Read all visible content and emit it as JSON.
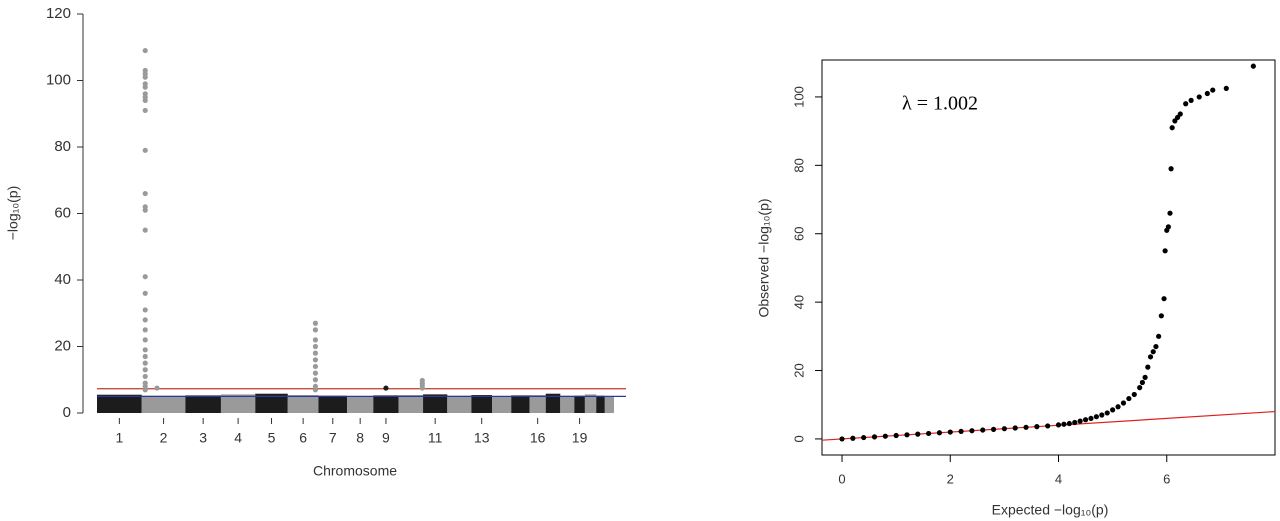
{
  "chart_data": [
    {
      "type": "manhattan",
      "x_label": "Chromosome",
      "y_label": "−log₁₀(p)",
      "ylim": [
        0,
        120
      ],
      "yticks": [
        0,
        20,
        40,
        60,
        80,
        100,
        120
      ],
      "categories": [
        "1",
        "2",
        "3",
        "4",
        "5",
        "6",
        "7",
        "8",
        "9",
        null,
        "11",
        null,
        "13",
        null,
        null,
        "16",
        null,
        null,
        "19",
        null,
        null,
        null
      ],
      "lengths": [
        249,
        243,
        198,
        191,
        181,
        171,
        159,
        146,
        141,
        136,
        135,
        134,
        115,
        107,
        102,
        90,
        81,
        78,
        59,
        63,
        48,
        51
      ],
      "bands": {
        "values": [
          5.5,
          5.2,
          5.3,
          5.6,
          5.8,
          5.4,
          5.2,
          5,
          5.3,
          5.4,
          5.6,
          5.2,
          5.4,
          5,
          5.3,
          5.4,
          5.8,
          5.2,
          5.2,
          5.6,
          5.2,
          5
        ]
      },
      "band_colors": [
        "#1c1c1c",
        "#9a9a9a"
      ],
      "hlines": [
        {
          "value": 7.3,
          "color": "#c0392b"
        },
        {
          "value": 5,
          "color": "#2b3a9a"
        }
      ],
      "points": {
        "x": [
          2.08,
          2.08,
          2.08,
          2.08,
          2.08,
          2.08,
          2.08,
          2.08,
          2.08,
          2.08,
          2.08,
          2.08,
          2.08,
          2.08,
          2.08,
          2.08,
          2.08,
          2.08,
          2.08,
          2.08,
          2.08,
          2.08,
          2.08,
          2.08,
          2.08,
          2.08,
          2.08,
          2.08,
          2.08,
          2.35,
          6.9,
          6.9,
          6.9,
          6.9,
          6.9,
          6.9,
          6.9,
          6.9,
          6.9,
          6.9,
          6.9,
          9.5,
          10.97,
          10.97,
          10.97,
          10.97
        ],
        "values": [
          109,
          103,
          102,
          101,
          99,
          98,
          96,
          95,
          94,
          91,
          79,
          66,
          62,
          61,
          55,
          41,
          36,
          31,
          28,
          25,
          22,
          19,
          17,
          15,
          13,
          11,
          9,
          8,
          7,
          7.5,
          27,
          25,
          22,
          20,
          18,
          16,
          14,
          12,
          10,
          8,
          7,
          7.5,
          9.8,
          9,
          8.3,
          7.5
        ]
      }
    },
    {
      "type": "scatter",
      "x_label": "Expected −log₁₀(p)",
      "y_label": "Observed −log₁₀(p)",
      "annotation": "λ = 1.002",
      "xlim": [
        -0.37,
        8.0
      ],
      "xticks": [
        0,
        2,
        4,
        6
      ],
      "ylim": [
        -4.7,
        110.8
      ],
      "yticks": [
        0,
        20,
        40,
        60,
        80,
        100
      ],
      "color": "#000000",
      "reference_line": {
        "slope": 1,
        "color": "#e02020"
      },
      "x": [
        0,
        0.2,
        0.4,
        0.6,
        0.8,
        1,
        1.2,
        1.4,
        1.6,
        1.8,
        2,
        2.2,
        2.4,
        2.6,
        2.8,
        3,
        3.2,
        3.4,
        3.6,
        3.8,
        4,
        4.1,
        4.2,
        4.3,
        4.4,
        4.5,
        4.6,
        4.7,
        4.8,
        4.9,
        5,
        5.1,
        5.2,
        5.3,
        5.4,
        5.5,
        5.55,
        5.6,
        5.65,
        5.7,
        5.75,
        5.8,
        5.85,
        5.9,
        5.95,
        5.97,
        6,
        6.03,
        6.06,
        6.08,
        6.1,
        6.15,
        6.2,
        6.25,
        6.35,
        6.45,
        6.6,
        6.75,
        6.85,
        7.1,
        7.6
      ],
      "values": [
        0,
        0.2,
        0.4,
        0.6,
        0.8,
        1,
        1.2,
        1.4,
        1.6,
        1.8,
        2,
        2.2,
        2.4,
        2.6,
        2.8,
        3,
        3.2,
        3.4,
        3.6,
        3.8,
        4.1,
        4.3,
        4.5,
        4.8,
        5.2,
        5.6,
        6,
        6.5,
        7,
        7.6,
        8.5,
        9.4,
        10.5,
        11.8,
        13,
        15,
        16.5,
        18,
        21,
        24,
        25.5,
        27,
        30,
        36,
        41,
        55,
        61,
        62,
        66,
        79,
        91,
        93,
        94,
        95,
        98,
        99,
        100,
        101,
        102,
        102.5,
        109
      ]
    }
  ]
}
